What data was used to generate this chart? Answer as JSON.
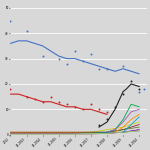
{
  "background_color": "#d8d8d8",
  "figsize": [
    1.5,
    1.5
  ],
  "dpi": 100,
  "xlim": [
    0,
    8.5
  ],
  "ylim": [
    0,
    52
  ],
  "grid_color": "#ffffff",
  "x_labels": [
    "2012",
    "04.2013",
    "04.2014",
    "04.2015",
    "04.2016",
    "04.2017",
    "04.2018",
    "04.2019",
    "04.2024"
  ],
  "x_ticks": [
    0,
    1,
    2,
    3,
    4,
    5,
    6,
    7,
    8
  ],
  "blue_line_x": [
    0,
    0.5,
    1,
    1.5,
    2,
    2.5,
    3,
    3.5,
    4,
    4.5,
    5,
    5.5,
    6,
    6.5,
    7,
    7.5,
    8
  ],
  "blue_line_y": [
    36,
    37,
    37,
    36,
    35,
    33,
    31,
    30,
    30,
    29,
    28,
    27,
    26,
    25,
    26,
    25,
    24
  ],
  "blue_dots_x": [
    0,
    1,
    2,
    3,
    3.5,
    4,
    4.5,
    5,
    5.5,
    6,
    7,
    8,
    8.3
  ],
  "blue_dots_y": [
    45,
    41,
    31,
    30,
    28,
    33,
    29,
    32,
    26,
    26,
    27,
    17,
    18
  ],
  "red_line_x": [
    0,
    0.5,
    1,
    1.5,
    2,
    2.5,
    3,
    3.5,
    4,
    4.5,
    5,
    5.5,
    6
  ],
  "red_line_y": [
    16,
    16,
    15,
    14,
    13,
    13,
    12,
    11,
    11,
    10,
    10,
    9,
    8
  ],
  "red_dots_x": [
    0,
    1,
    1.5,
    2,
    2.5,
    3,
    3.5,
    4,
    4.5,
    5,
    5.5,
    6
  ],
  "red_dots_y": [
    18,
    15,
    14,
    13,
    15,
    13,
    12,
    11,
    10,
    12,
    10,
    9
  ],
  "black_line_x": [
    5.5,
    6,
    6.5,
    7,
    7.2,
    7.5,
    8
  ],
  "black_line_y": [
    3,
    5,
    10,
    17,
    18,
    20,
    19
  ],
  "black_dots_x": [
    5.5,
    6,
    6.5,
    7,
    7.5,
    8
  ],
  "black_dots_y": [
    4,
    6,
    11,
    16,
    21,
    18
  ],
  "green_line_x": [
    6,
    6.5,
    7,
    7.5,
    8
  ],
  "green_line_y": [
    1,
    2,
    6,
    12,
    11
  ],
  "purple_line_x": [
    6,
    6.5,
    7,
    7.5,
    8
  ],
  "purple_line_y": [
    1,
    2,
    5,
    9,
    10
  ],
  "orange_line_x": [
    6.5,
    7,
    7.5,
    8
  ],
  "orange_line_y": [
    1,
    3,
    6,
    8
  ],
  "cyan_line_x": [
    7,
    7.5,
    8
  ],
  "cyan_line_y": [
    1,
    4,
    7
  ],
  "yellow_line_x": [
    0,
    1,
    2,
    3,
    4,
    5,
    6,
    7,
    8
  ],
  "yellow_line_y": [
    1,
    1,
    1,
    1,
    1,
    1,
    2,
    3,
    5
  ],
  "dark_red_line_x": [
    0,
    1,
    2,
    3,
    4,
    5,
    6,
    7,
    8
  ],
  "dark_red_line_y": [
    1,
    1,
    1,
    1,
    1,
    1,
    1,
    2,
    4
  ],
  "olive_line_x": [
    0,
    1,
    2,
    3,
    4,
    5,
    6,
    7,
    8
  ],
  "olive_line_y": [
    0.5,
    0.5,
    0.5,
    0.5,
    0.5,
    1,
    1,
    2,
    3
  ],
  "teal_line_x": [
    0,
    1,
    2,
    3,
    4,
    5,
    6,
    7,
    8
  ],
  "teal_line_y": [
    0.5,
    0.5,
    0.5,
    0.5,
    0.5,
    0.5,
    1,
    1,
    2
  ],
  "magenta_line_x": [
    0,
    1,
    2,
    3,
    4,
    5,
    6,
    7,
    8
  ],
  "magenta_line_y": [
    0.5,
    0.5,
    0.5,
    0.5,
    0.5,
    0.5,
    0.5,
    1,
    2
  ],
  "brown_line_x": [
    0,
    1,
    2,
    3,
    4,
    5,
    6,
    7,
    8
  ],
  "brown_line_y": [
    0.3,
    0.3,
    0.3,
    0.3,
    0.3,
    0.3,
    0.5,
    1,
    1.5
  ],
  "lime_line_x": [
    0,
    1,
    2,
    3,
    4,
    5,
    6,
    7,
    8
  ],
  "lime_line_y": [
    0.3,
    0.3,
    0.3,
    0.3,
    0.3,
    0.5,
    0.5,
    1,
    1.5
  ]
}
